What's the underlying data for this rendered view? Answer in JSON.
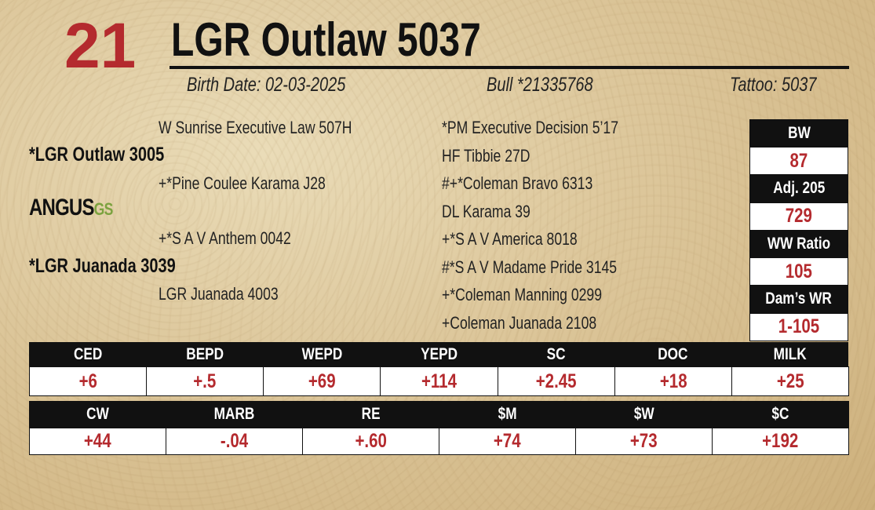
{
  "header": {
    "lot": "21",
    "name": "LGR Outlaw 5037",
    "birth_date": "Birth Date: 02-03-2025",
    "registration": "Bull *21335768",
    "tattoo": "Tattoo: 5037"
  },
  "pedigree": {
    "sire_sire": "W Sunrise Executive Law 507H",
    "sire": "*LGR Outlaw 3005",
    "sire_dam": "+*Pine Coulee Karama J28",
    "dam_sire": "+*S A V Anthem 0042",
    "dam": "*LGR Juanada 3039",
    "dam_dam": "LGR Juanada 4003",
    "great_grandparents": [
      "*PM Executive Decision 5’17",
      "HF Tibbie 27D",
      "#+*Coleman Bravo 6313",
      "DL Karama 39",
      "+*S A V America 8018",
      "#*S A V Madame Pride 3145",
      "+*Coleman Manning 0299",
      "+Coleman Juanada 2108"
    ]
  },
  "logo": {
    "text": "ANGUS",
    "badge": "GS"
  },
  "performance": [
    {
      "label": "BW",
      "value": "87"
    },
    {
      "label": "Adj. 205",
      "value": "729"
    },
    {
      "label": "WW Ratio",
      "value": "105"
    },
    {
      "label": "Dam’s WR",
      "value": "1-105"
    }
  ],
  "epd_tables": [
    {
      "headers": [
        "CED",
        "BEPD",
        "WEPD",
        "YEPD",
        "SC",
        "DOC",
        "MILK"
      ],
      "values": [
        "+6",
        "+.5",
        "+69",
        "+114",
        "+2.45",
        "+18",
        "+25"
      ]
    },
    {
      "headers": [
        "CW",
        "MARB",
        "RE",
        "$M",
        "$W",
        "$C"
      ],
      "values": [
        "+44",
        "-.04",
        "+.60",
        "+74",
        "+73",
        "+192"
      ]
    }
  ]
}
